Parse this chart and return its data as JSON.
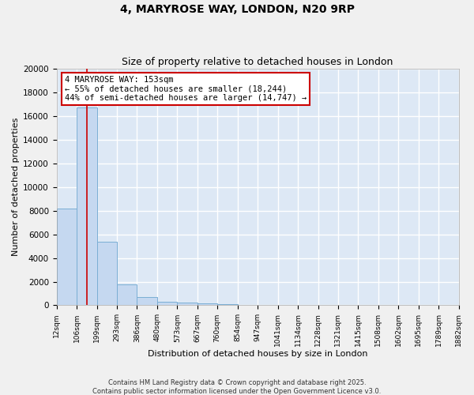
{
  "title1": "4, MARYROSE WAY, LONDON, N20 9RP",
  "title2": "Size of property relative to detached houses in London",
  "xlabel": "Distribution of detached houses by size in London",
  "ylabel": "Number of detached properties",
  "bar_color": "#c5d8f0",
  "bar_edge_color": "#7aaed4",
  "background_color": "#dde8f5",
  "grid_color": "#ffffff",
  "fig_bg_color": "#f0f0f0",
  "bin_edges": [
    12,
    106,
    199,
    293,
    386,
    480,
    573,
    667,
    760,
    854,
    947,
    1041,
    1134,
    1228,
    1321,
    1415,
    1508,
    1602,
    1695,
    1789,
    1882
  ],
  "bar_heights": [
    8200,
    16700,
    5400,
    1800,
    700,
    300,
    200,
    150,
    100,
    0,
    0,
    0,
    0,
    0,
    0,
    0,
    0,
    0,
    0,
    0
  ],
  "ylim": [
    0,
    20000
  ],
  "yticks": [
    0,
    2000,
    4000,
    6000,
    8000,
    10000,
    12000,
    14000,
    16000,
    18000,
    20000
  ],
  "red_line_x": 153,
  "annotation_title": "4 MARYROSE WAY: 153sqm",
  "annotation_line1": "← 55% of detached houses are smaller (18,244)",
  "annotation_line2": "44% of semi-detached houses are larger (14,747) →",
  "annotation_box_color": "#ffffff",
  "annotation_box_edge_color": "#cc0000",
  "red_line_color": "#cc0000",
  "footer1": "Contains HM Land Registry data © Crown copyright and database right 2025.",
  "footer2": "Contains public sector information licensed under the Open Government Licence v3.0."
}
